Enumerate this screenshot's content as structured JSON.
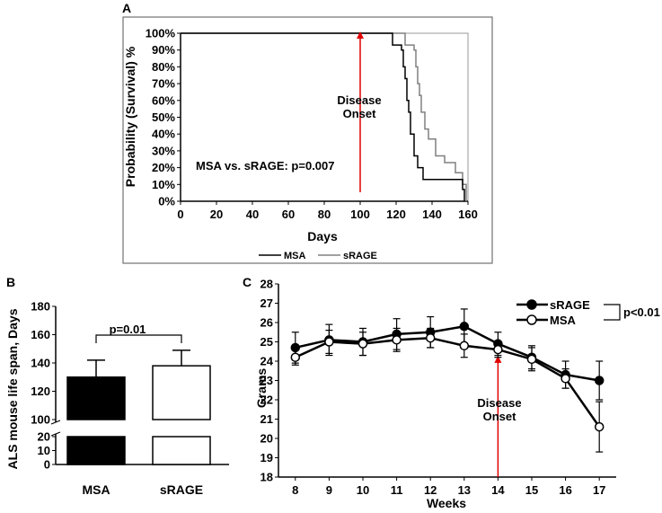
{
  "chart_data": [
    {
      "panel": "A",
      "type": "line",
      "subtype": "kaplan-meier",
      "xlabel": "Days",
      "ylabel": "Probability (Survival) %",
      "xlim": [
        0,
        160
      ],
      "ylim": [
        0,
        100
      ],
      "xticks": [
        "0",
        "20",
        "40",
        "60",
        "80",
        "100",
        "120",
        "140",
        "160"
      ],
      "yticks": [
        "0%",
        "10%",
        "20%",
        "30%",
        "40%",
        "50%",
        "60%",
        "70%",
        "80%",
        "90%",
        "100%"
      ],
      "annotation": "MSA vs. sRAGE: p=0.007",
      "onset_label_line1": "Disease",
      "onset_label_line2": "Onset",
      "onset_day": 100,
      "legend_position": "bottom",
      "series": [
        {
          "name": "MSA",
          "color": "#000000",
          "x": [
            0,
            112,
            118,
            121,
            123,
            124,
            125,
            126,
            127,
            128,
            130,
            132,
            135,
            155,
            157,
            158
          ],
          "y": [
            100,
            100,
            93,
            93,
            90,
            80,
            73,
            60,
            53,
            40,
            27,
            20,
            13,
            13,
            7,
            0
          ]
        },
        {
          "name": "sRAGE",
          "color": "#808080",
          "x": [
            0,
            122,
            125,
            128,
            130,
            131,
            132,
            133,
            134,
            136,
            138,
            142,
            147,
            153,
            156,
            157,
            159
          ],
          "y": [
            100,
            100,
            93,
            93,
            90,
            80,
            70,
            63,
            53,
            43,
            37,
            27,
            23,
            17,
            17,
            10,
            0
          ]
        }
      ]
    },
    {
      "panel": "B",
      "type": "bar",
      "categories": [
        "MSA",
        "sRAGE"
      ],
      "values": [
        130,
        138
      ],
      "errors": [
        12,
        11
      ],
      "ylabel": "ALS mouse life span, Days",
      "ylim": [
        0,
        180
      ],
      "axis_break": [
        20,
        100
      ],
      "yticks_lower": [
        "0",
        "10",
        "20"
      ],
      "yticks_upper": [
        "100",
        "120",
        "140",
        "160",
        "180"
      ],
      "fills": [
        "#000000",
        "#ffffff"
      ],
      "significance": "p=0.01"
    },
    {
      "panel": "C",
      "type": "line",
      "xlabel": "Weeks",
      "ylabel": "Grams",
      "xlim": [
        7.5,
        17.5
      ],
      "ylim": [
        18,
        28
      ],
      "x": [
        8,
        9,
        10,
        11,
        12,
        13,
        14,
        15,
        16,
        17
      ],
      "xticks": [
        "8",
        "9",
        "10",
        "11",
        "12",
        "13",
        "14",
        "15",
        "16",
        "17"
      ],
      "yticks": [
        "18",
        "19",
        "20",
        "21",
        "22",
        "23",
        "24",
        "25",
        "26",
        "27",
        "28"
      ],
      "onset_week": 14,
      "onset_label_line1": "Disease",
      "onset_label_line2": "Onset",
      "significance": "p<0.01",
      "series": [
        {
          "name": "sRAGE",
          "marker": "filled",
          "values": [
            24.7,
            25.1,
            25.0,
            25.4,
            25.5,
            25.8,
            24.9,
            24.2,
            23.3,
            23.0
          ],
          "errors": [
            0.8,
            0.8,
            0.7,
            0.8,
            0.8,
            0.9,
            0.6,
            0.6,
            0.7,
            1.0
          ]
        },
        {
          "name": "MSA",
          "marker": "open",
          "values": [
            24.2,
            25.0,
            24.9,
            25.1,
            25.2,
            24.8,
            24.6,
            24.1,
            23.1,
            20.6
          ],
          "errors": [
            0.4,
            0.6,
            0.6,
            0.6,
            0.5,
            0.6,
            0.4,
            0.6,
            0.5,
            1.3
          ]
        }
      ]
    }
  ]
}
